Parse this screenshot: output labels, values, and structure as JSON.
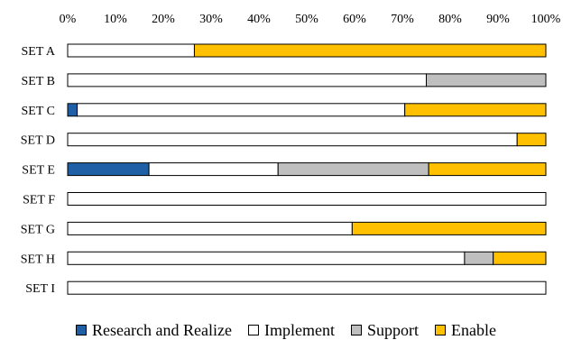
{
  "chart_data": {
    "type": "bar",
    "orientation": "horizontal",
    "stacked": "percent",
    "x_axis_position": "top",
    "grid": false,
    "legend_position": "bottom",
    "xlim": [
      0,
      100
    ],
    "x_ticks": [
      "0%",
      "10%",
      "20%",
      "30%",
      "40%",
      "50%",
      "60%",
      "70%",
      "80%",
      "90%",
      "100%"
    ],
    "categories": [
      "SET A",
      "SET B",
      "SET C",
      "SET D",
      "SET E",
      "SET F",
      "SET G",
      "SET H",
      "SET I"
    ],
    "series": [
      {
        "name": "Research and Realize",
        "color": "#1f5fa6",
        "values": [
          0,
          0,
          2,
          0,
          17,
          0,
          0,
          0,
          0
        ]
      },
      {
        "name": "Implement",
        "color": "#ffffff",
        "values": [
          26.5,
          75,
          68.5,
          94,
          27,
          100,
          59.5,
          83,
          100
        ]
      },
      {
        "name": "Support",
        "color": "#bfbfbf",
        "values": [
          0,
          25,
          0,
          0,
          31.5,
          0,
          0,
          6,
          0
        ]
      },
      {
        "name": "Enable",
        "color": "#ffc000",
        "values": [
          73.5,
          0,
          29.5,
          6,
          24.5,
          0,
          40.5,
          11,
          0
        ]
      }
    ]
  }
}
